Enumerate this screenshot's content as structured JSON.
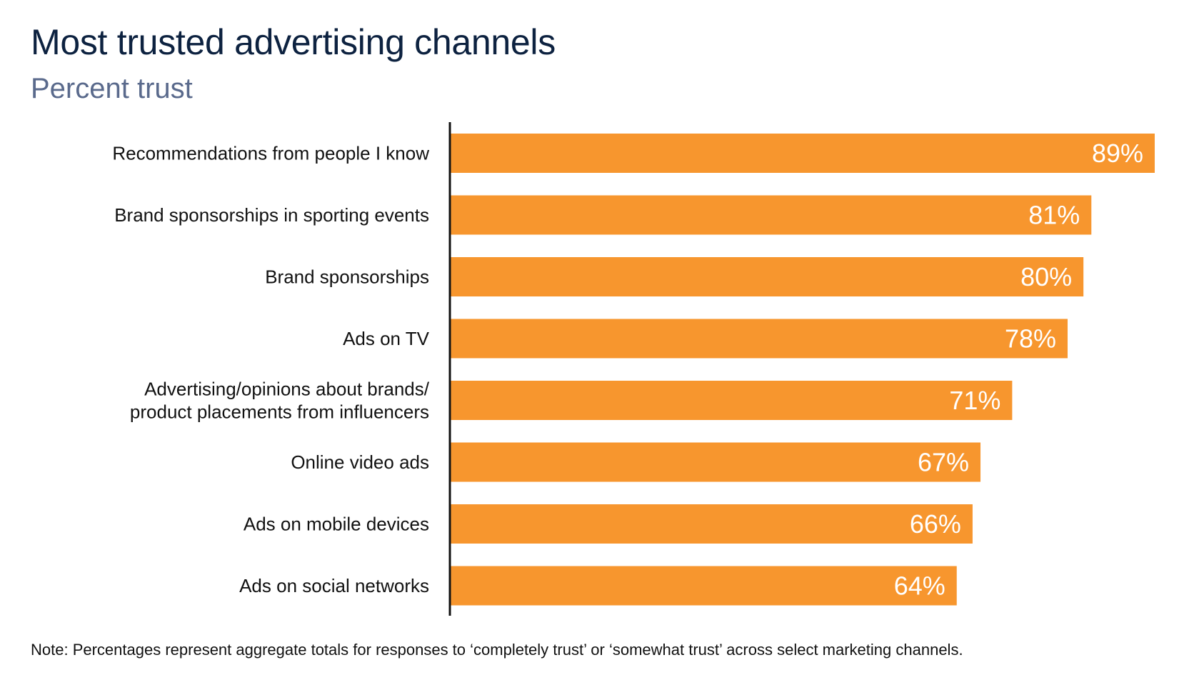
{
  "header": {
    "title": "Most trusted advertising channels",
    "subtitle": "Percent trust"
  },
  "footer": {
    "note": "Note: Percentages represent aggregate totals for responses to ‘completely trust’ or ‘somewhat trust’ across select marketing channels."
  },
  "chart_data": {
    "type": "bar",
    "orientation": "horizontal",
    "title": "Most trusted advertising channels",
    "subtitle": "Percent trust",
    "categories": [
      [
        "Recommendations from people I know"
      ],
      [
        "Brand sponsorships in sporting events"
      ],
      [
        "Brand sponsorships"
      ],
      [
        "Ads on TV"
      ],
      [
        "Advertising/opinions about brands/",
        "product placements from influencers"
      ],
      [
        "Online video ads"
      ],
      [
        "Ads on mobile devices"
      ],
      [
        "Ads on social networks"
      ]
    ],
    "values": [
      89,
      81,
      80,
      78,
      71,
      67,
      66,
      64
    ],
    "value_labels": [
      "89%",
      "81%",
      "80%",
      "78%",
      "71%",
      "67%",
      "66%",
      "64%"
    ],
    "xlim": [
      0,
      89
    ],
    "grid": false,
    "legend": "none",
    "colors": {
      "bar": "#f7962e",
      "axis": "#111111",
      "value_label": "#ffffff",
      "category_label": "#111111"
    }
  }
}
